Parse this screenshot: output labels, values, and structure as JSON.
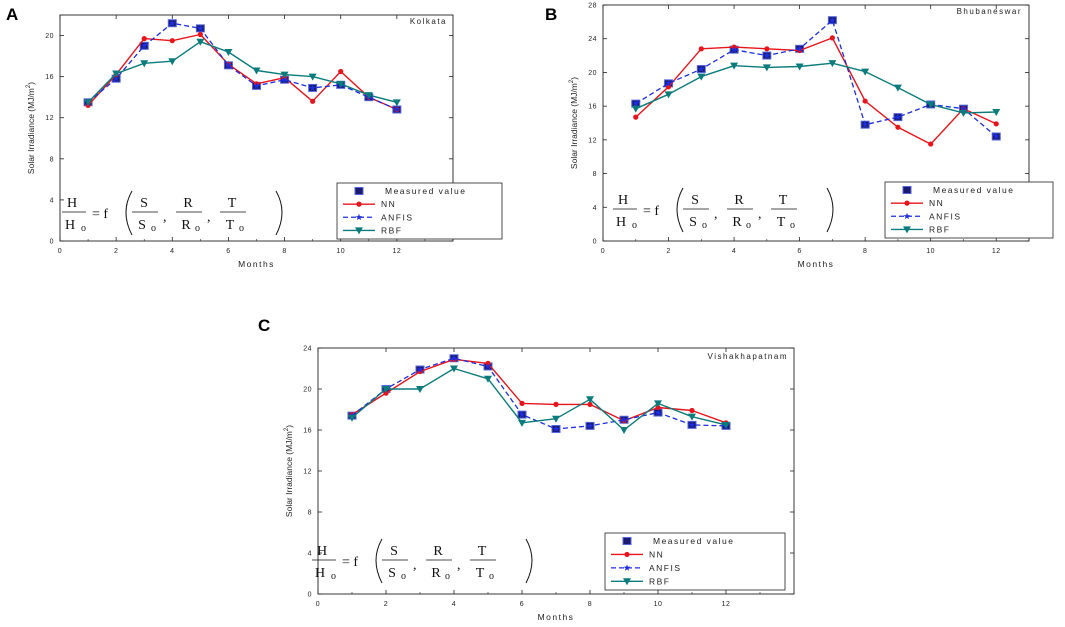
{
  "chart_data": [
    {
      "type": "line",
      "panel": "A",
      "title": "Kolkata",
      "xlabel": "Months",
      "ylabel": "Solar Irradiance (MJ/m",
      "ylabel_sup": "2",
      "ylabel_tail": ")",
      "xlim": [
        0,
        14
      ],
      "ylim": [
        0,
        22
      ],
      "xticks": [
        0,
        2,
        4,
        6,
        8,
        10,
        12
      ],
      "yticks": [
        0,
        4,
        8,
        12,
        16,
        20
      ],
      "x": [
        1,
        2,
        3,
        4,
        5,
        6,
        7,
        8,
        9,
        10,
        11,
        12
      ],
      "series": [
        {
          "name": "Measured value",
          "color": "#1a1a6e",
          "values": [
            13.5,
            15.8,
            19.0,
            21.2,
            20.7,
            17.1,
            15.1,
            15.7,
            14.9,
            15.2,
            14.0,
            12.8
          ]
        },
        {
          "name": "NN",
          "color": "#e8141c",
          "values": [
            13.2,
            16.2,
            19.7,
            19.5,
            20.1,
            17.2,
            15.3,
            15.9,
            13.6,
            16.5,
            14.0,
            12.8
          ]
        },
        {
          "name": "ANFIS",
          "color": "#1c2ee0",
          "values": [
            13.5,
            15.8,
            19.0,
            21.2,
            20.7,
            17.1,
            15.1,
            15.7,
            14.9,
            15.2,
            14.0,
            12.8
          ]
        },
        {
          "name": "RBF",
          "color": "#0b7b7b",
          "values": [
            13.5,
            16.3,
            17.3,
            17.5,
            19.4,
            18.4,
            16.6,
            16.2,
            16.0,
            15.3,
            14.2,
            13.5
          ]
        }
      ]
    },
    {
      "type": "line",
      "panel": "B",
      "title": "Bhubaneswar",
      "xlabel": "Months",
      "ylabel": "Solar Irradiance (MJ/m",
      "ylabel_sup": "2",
      "ylabel_tail": ")",
      "xlim": [
        0,
        13
      ],
      "ylim": [
        0,
        28
      ],
      "xticks": [
        0,
        2,
        4,
        6,
        8,
        10,
        12
      ],
      "yticks": [
        0,
        4,
        8,
        12,
        16,
        20,
        24,
        28
      ],
      "x": [
        1,
        2,
        3,
        4,
        5,
        6,
        7,
        8,
        9,
        10,
        11,
        12
      ],
      "series": [
        {
          "name": "Measured value",
          "color": "#1a1a6e",
          "values": [
            16.3,
            18.7,
            20.4,
            22.7,
            22.0,
            22.8,
            26.2,
            13.8,
            14.7,
            16.2,
            15.7,
            12.4
          ]
        },
        {
          "name": "NN",
          "color": "#e8141c",
          "values": [
            14.7,
            18.3,
            22.8,
            23.0,
            22.8,
            22.6,
            24.1,
            16.6,
            13.5,
            11.5,
            15.7,
            13.9
          ]
        },
        {
          "name": "ANFIS",
          "color": "#1c2ee0",
          "values": [
            16.3,
            18.7,
            20.4,
            22.7,
            22.0,
            22.8,
            26.2,
            13.8,
            14.7,
            16.2,
            15.7,
            12.4
          ]
        },
        {
          "name": "RBF",
          "color": "#0b7b7b",
          "values": [
            15.7,
            17.4,
            19.5,
            20.8,
            20.6,
            20.7,
            21.1,
            20.1,
            18.2,
            16.2,
            15.2,
            15.3
          ]
        }
      ]
    },
    {
      "type": "line",
      "panel": "C",
      "title": "Vishakhapatnam",
      "xlabel": "Months",
      "ylabel": "Solar Irradiance (MJ/m",
      "ylabel_sup": "2",
      "ylabel_tail": ")",
      "xlim": [
        0,
        14
      ],
      "ylim": [
        0,
        24
      ],
      "xticks": [
        0,
        2,
        4,
        6,
        8,
        10,
        12
      ],
      "yticks": [
        0,
        4,
        8,
        12,
        16,
        20,
        24
      ],
      "x": [
        1,
        2,
        3,
        4,
        5,
        6,
        7,
        8,
        9,
        10,
        11,
        12
      ],
      "series": [
        {
          "name": "Measured value",
          "color": "#1a1a6e",
          "values": [
            17.4,
            20.0,
            21.9,
            23.0,
            22.2,
            17.5,
            16.1,
            16.4,
            17.0,
            17.7,
            16.5,
            16.4
          ]
        },
        {
          "name": "NN",
          "color": "#e8141c",
          "values": [
            17.5,
            19.6,
            21.7,
            22.9,
            22.5,
            18.6,
            18.5,
            18.5,
            16.9,
            18.2,
            17.9,
            16.7
          ]
        },
        {
          "name": "ANFIS",
          "color": "#1c2ee0",
          "values": [
            17.4,
            20.0,
            21.9,
            23.0,
            22.2,
            17.5,
            16.1,
            16.4,
            17.0,
            17.7,
            16.5,
            16.4
          ]
        },
        {
          "name": "RBF",
          "color": "#0b7b7b",
          "values": [
            17.2,
            20.0,
            20.0,
            22.0,
            21.0,
            16.7,
            17.1,
            19.0,
            16.0,
            18.6,
            17.3,
            16.5
          ]
        }
      ]
    }
  ],
  "legend": {
    "measured": "Measured value",
    "nn": "NN",
    "anfis": "ANFIS",
    "rbf": "RBF"
  },
  "formula": {
    "lhs_num": "H",
    "lhs_den": "H",
    "lhs_den_sub": "o",
    "equals_f": "= f",
    "s_num": "S",
    "s_den": "S",
    "r_num": "R",
    "r_den": "R",
    "t_num": "T",
    "t_den": "T",
    "sub": "o",
    "comma": ","
  }
}
